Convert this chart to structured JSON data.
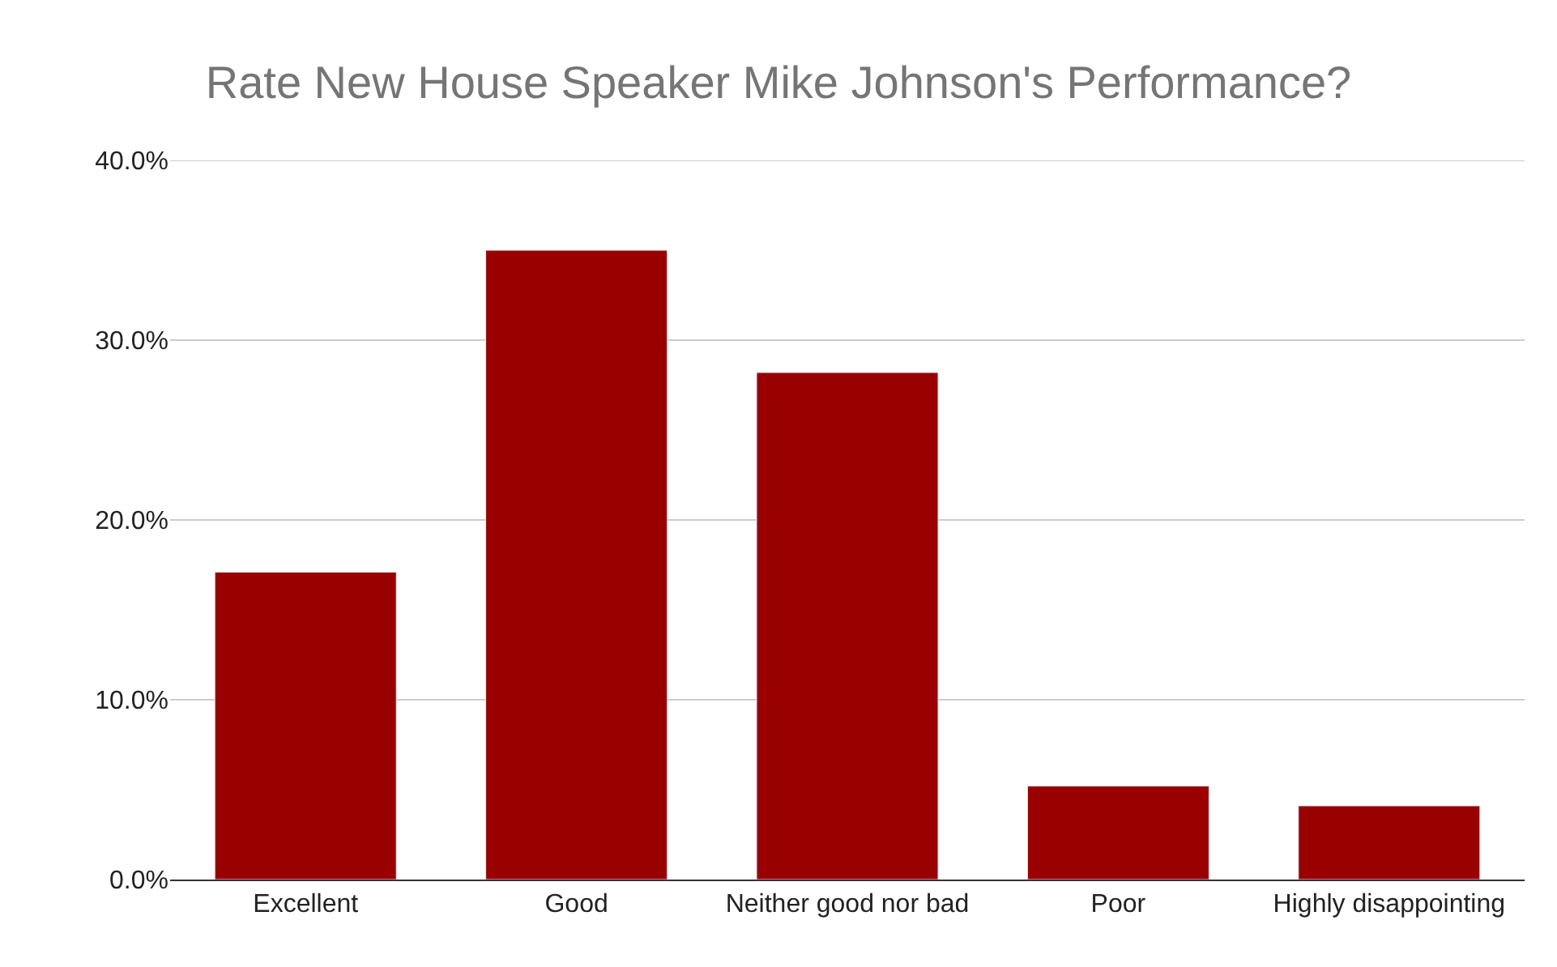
{
  "chart_data": {
    "type": "bar",
    "title": "Rate New House Speaker Mike Johnson's Performance?",
    "categories": [
      "Excellent",
      "Good",
      "Neither good nor bad",
      "Poor",
      "Highly disappointing"
    ],
    "values": [
      17.1,
      35.0,
      28.2,
      5.2,
      4.1
    ],
    "color": "#990000",
    "ylim": [
      0,
      40
    ],
    "yticks": [
      {
        "value": 0,
        "label": "0.0%"
      },
      {
        "value": 10,
        "label": "10.0%"
      },
      {
        "value": 20,
        "label": "20.0%"
      },
      {
        "value": 30,
        "label": "30.0%"
      },
      {
        "value": 40,
        "label": "40.0%"
      }
    ],
    "grid": "y"
  }
}
